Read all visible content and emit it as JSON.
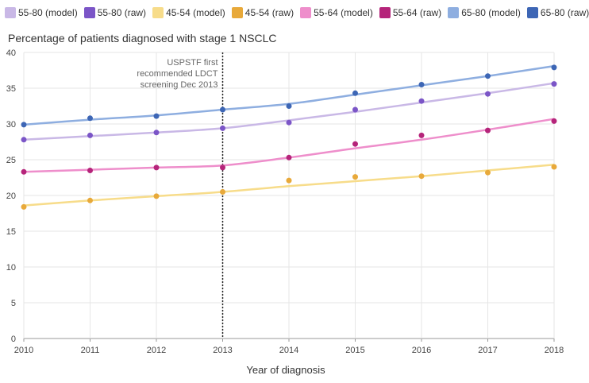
{
  "chart_data": {
    "type": "line",
    "title": "Percentage of patients diagnosed with stage 1 NSCLC",
    "xlabel": "Year of diagnosis",
    "ylabel": "",
    "x": [
      2010,
      2011,
      2012,
      2013,
      2014,
      2015,
      2016,
      2017,
      2018
    ],
    "ylim": [
      0,
      40
    ],
    "yticks": [
      0,
      5,
      10,
      15,
      20,
      25,
      30,
      35,
      40
    ],
    "grid": true,
    "legend_position": "top",
    "annotation": {
      "x": 2013,
      "lines": [
        "USPSTF first",
        "recommended LDCT",
        "screening Dec 2013"
      ]
    },
    "series": [
      {
        "name": "55-80 (model)",
        "kind": "line",
        "color": "#c9b8e6",
        "values": [
          27.8,
          28.3,
          28.8,
          29.4,
          30.5,
          31.7,
          33.0,
          34.3,
          35.7
        ]
      },
      {
        "name": "55-80 (raw)",
        "kind": "points",
        "color": "#7b55c7",
        "values": [
          27.8,
          28.4,
          28.8,
          29.4,
          30.2,
          32.0,
          33.2,
          34.2,
          35.6
        ]
      },
      {
        "name": "45-54 (model)",
        "kind": "line",
        "color": "#f7dc8a",
        "values": [
          18.6,
          19.3,
          19.9,
          20.5,
          21.3,
          22.0,
          22.7,
          23.5,
          24.3
        ]
      },
      {
        "name": "45-54 (raw)",
        "kind": "points",
        "color": "#e8a93a",
        "values": [
          18.4,
          19.3,
          19.9,
          20.5,
          22.1,
          22.6,
          22.7,
          23.2,
          24.0
        ]
      },
      {
        "name": "55-64 (model)",
        "kind": "line",
        "color": "#ee8ecb",
        "values": [
          23.3,
          23.6,
          23.9,
          24.2,
          25.3,
          26.6,
          27.8,
          29.2,
          30.7
        ]
      },
      {
        "name": "55-64 (raw)",
        "kind": "points",
        "color": "#b5247a",
        "values": [
          23.3,
          23.5,
          23.9,
          23.9,
          25.3,
          27.2,
          28.4,
          29.1,
          30.4
        ]
      },
      {
        "name": "65-80 (model)",
        "kind": "line",
        "color": "#8eaee0",
        "values": [
          29.9,
          30.6,
          31.2,
          32.0,
          32.8,
          34.1,
          35.4,
          36.7,
          38.1
        ]
      },
      {
        "name": "65-80 (raw)",
        "kind": "points",
        "color": "#3d66b5",
        "values": [
          29.9,
          30.8,
          31.1,
          32.0,
          32.5,
          34.3,
          35.5,
          36.7,
          37.9
        ]
      }
    ]
  }
}
